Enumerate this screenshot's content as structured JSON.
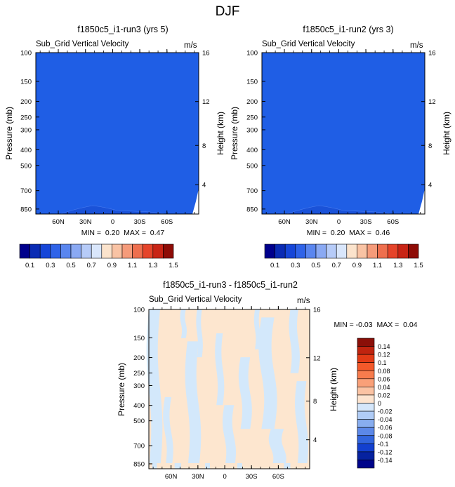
{
  "page_title": "DJF",
  "colors": {
    "field_blue": "#1f5ee5",
    "field_blue_dark": "#1a52d8",
    "pos_light": "#fde6cf",
    "neg_light": "#d3e8fb",
    "ground": "#ffffff"
  },
  "colorbar_top": {
    "colors": [
      "#00008c",
      "#0a2bb4",
      "#1646d8",
      "#2f63e8",
      "#5a86ef",
      "#8aa9f3",
      "#b6cbf8",
      "#d9e6fb",
      "#fbe3cc",
      "#f9c3a4",
      "#f59b7a",
      "#ee6f4e",
      "#e5442a",
      "#c82415",
      "#8e0c06"
    ],
    "labels": [
      "0.1",
      "0.3",
      "0.5",
      "0.7",
      "0.9",
      "1.1",
      "1.3",
      "1.5"
    ]
  },
  "colorbar_diff": {
    "colors": [
      "#8b0f08",
      "#c0240f",
      "#e23b16",
      "#f3592a",
      "#f77c4d",
      "#f9a078",
      "#fbc3a3",
      "#fde4cf",
      "#d5e7fb",
      "#b0ccf6",
      "#88adef",
      "#5c88e8",
      "#3265dd",
      "#1340cf",
      "#06229f",
      "#00048a"
    ],
    "labels": [
      "0.14",
      "0.12",
      "0.1",
      "0.08",
      "0.06",
      "0.04",
      "0.02",
      "0",
      "-0.02",
      "-0.04",
      "-0.06",
      "-0.08",
      "-0.1",
      "-0.12",
      "-0.14"
    ]
  },
  "chart_data": [
    {
      "type": "heatmap",
      "title": "f1850c5_i1-run3 (yrs 5)",
      "subtitle": "Sub_Grid Vertical Velocity",
      "units": "m/s",
      "ylabel": "Pressure (mb)",
      "ylabel_right": "Height (km)",
      "x_ticks": [
        "60N",
        "30N",
        "0",
        "30S",
        "60S"
      ],
      "y_ticks": [
        "100",
        "150",
        "200",
        "250",
        "300",
        "400",
        "500",
        "700",
        "850"
      ],
      "y_ticks_right": [
        "16",
        "12",
        "8",
        "4"
      ],
      "stats_text": "MIN =  0.20  MAX =  0.47",
      "min": 0.2,
      "max": 0.47
    },
    {
      "type": "heatmap",
      "title": "f1850c5_i1-run2 (yrs 3)",
      "subtitle": "Sub_Grid Vertical Velocity",
      "units": "m/s",
      "ylabel": "Pressure (mb)",
      "ylabel_right": "Height (km)",
      "x_ticks": [
        "60N",
        "30N",
        "0",
        "30S",
        "60S"
      ],
      "y_ticks": [
        "100",
        "150",
        "200",
        "250",
        "300",
        "400",
        "500",
        "700",
        "850"
      ],
      "y_ticks_right": [
        "16",
        "12",
        "8",
        "4"
      ],
      "stats_text": "MIN =  0.20  MAX =  0.46",
      "min": 0.2,
      "max": 0.46
    },
    {
      "type": "heatmap",
      "title": "f1850c5_i1-run3 - f1850c5_i1-run2",
      "subtitle": "Sub_Grid Vertical Velocity",
      "units": "m/s",
      "ylabel": "Pressure (mb)",
      "ylabel_right": "Height (km)",
      "x_ticks": [
        "60N",
        "30N",
        "0",
        "30S",
        "60S"
      ],
      "y_ticks": [
        "100",
        "150",
        "200",
        "250",
        "300",
        "400",
        "500",
        "700",
        "850"
      ],
      "y_ticks_right": [
        "16",
        "12",
        "8",
        "4"
      ],
      "stats_text": "MIN = -0.03  MAX =  0.04",
      "min": -0.03,
      "max": 0.04
    }
  ]
}
